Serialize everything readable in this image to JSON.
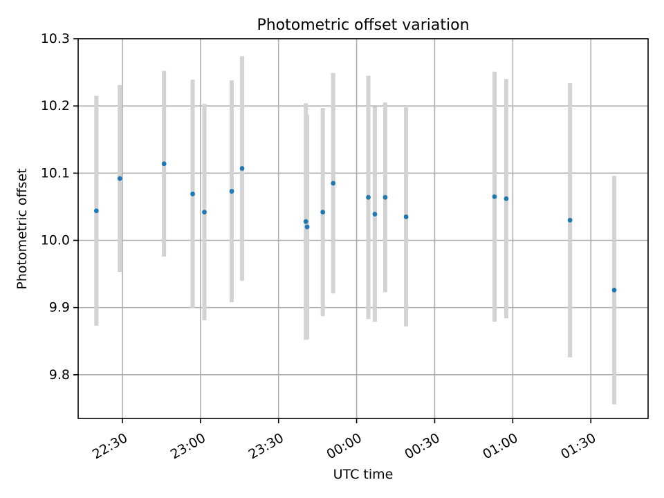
{
  "chart_data": {
    "type": "scatter",
    "title": "Photometric offset variation",
    "xlabel": "UTC time",
    "ylabel": "Photometric offset",
    "x_axis": {
      "kind": "time",
      "range": [
        "22:13",
        "01:52"
      ],
      "ticks": [
        "22:30",
        "23:00",
        "23:30",
        "00:00",
        "00:30",
        "01:00",
        "01:30"
      ],
      "tick_label_rotation": "angled"
    },
    "y_axis": {
      "range": [
        9.735,
        10.3
      ],
      "ticks": [
        "9.8",
        "9.9",
        "10.0",
        "10.1",
        "10.2",
        "10.3"
      ]
    },
    "grid": true,
    "colors": {
      "marker": "#1f77b4",
      "error_bar": "#d3d3d3"
    },
    "series": [
      {
        "points": [
          {
            "x": "22:20:00",
            "y": 10.044,
            "err": 0.171
          },
          {
            "x": "22:29:00",
            "y": 10.092,
            "err": 0.139
          },
          {
            "x": "22:46:00",
            "y": 10.114,
            "err": 0.138
          },
          {
            "x": "22:57:00",
            "y": 10.069,
            "err": 0.17
          },
          {
            "x": "23:01:30",
            "y": 10.042,
            "err": 0.161
          },
          {
            "x": "23:12:00",
            "y": 10.073,
            "err": 0.165
          },
          {
            "x": "23:16:00",
            "y": 10.107,
            "err": 0.167
          },
          {
            "x": "23:40:30",
            "y": 10.028,
            "err": 0.176
          },
          {
            "x": "23:41:00",
            "y": 10.02,
            "err": 0.167
          },
          {
            "x": "23:47:00",
            "y": 10.042,
            "err": 0.155
          },
          {
            "x": "23:51:00",
            "y": 10.085,
            "err": 0.164
          },
          {
            "x": "00:04:30",
            "y": 10.064,
            "err": 0.181
          },
          {
            "x": "00:07:00",
            "y": 10.039,
            "err": 0.16
          },
          {
            "x": "00:11:00",
            "y": 10.064,
            "err": 0.141
          },
          {
            "x": "00:19:00",
            "y": 10.035,
            "err": 0.163
          },
          {
            "x": "00:53:00",
            "y": 10.065,
            "err": 0.186
          },
          {
            "x": "00:57:30",
            "y": 10.062,
            "err": 0.178
          },
          {
            "x": "01:22:00",
            "y": 10.03,
            "err": 0.204
          },
          {
            "x": "01:39:00",
            "y": 9.926,
            "err": 0.17
          }
        ]
      }
    ]
  }
}
